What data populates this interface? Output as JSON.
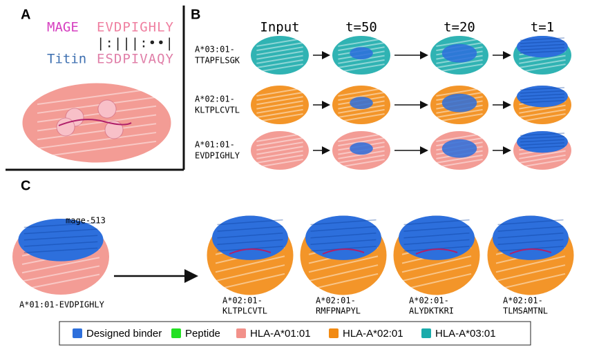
{
  "panel_a": {
    "label": "A",
    "query": {
      "name": "MAGE",
      "sequence": "EVDPIGHLY"
    },
    "alignment": "|:|||:••|",
    "target": {
      "name": "Titin",
      "sequence": "ESDPIVAQY"
    }
  },
  "panel_b": {
    "label": "B",
    "columns": [
      "Input",
      "t=50",
      "t=20",
      "t=1"
    ],
    "rows": [
      {
        "hla": "A*03:01-",
        "peptide": "TTAPFLSGK"
      },
      {
        "hla": "A*02:01-",
        "peptide": "KLTPLCVTL"
      },
      {
        "hla": "A*01:01-",
        "peptide": "EVDPIGHLY"
      }
    ]
  },
  "panel_c": {
    "label": "C",
    "binder": "mage-513",
    "source": "A*01:01-EVDPIGHLY",
    "targets": [
      {
        "hla": "A*02:01-",
        "peptide": "KLTPLCVTL"
      },
      {
        "hla": "A*02:01-",
        "peptide": "RMFPNAPYL"
      },
      {
        "hla": "A*02:01-",
        "peptide": "ALYDKTKRI"
      },
      {
        "hla": "A*02:01-",
        "peptide": "TLMSAMTNL"
      }
    ]
  },
  "legend": [
    {
      "name": "Designed binder",
      "color": "#2d6fdc"
    },
    {
      "name": "Peptide",
      "color": "#22e022"
    },
    {
      "name": "HLA-A*01:01",
      "color": "#f2918a"
    },
    {
      "name": "HLA-A*02:01",
      "color": "#f28a12"
    },
    {
      "name": "HLA-A*03:01",
      "color": "#1aabab"
    }
  ]
}
